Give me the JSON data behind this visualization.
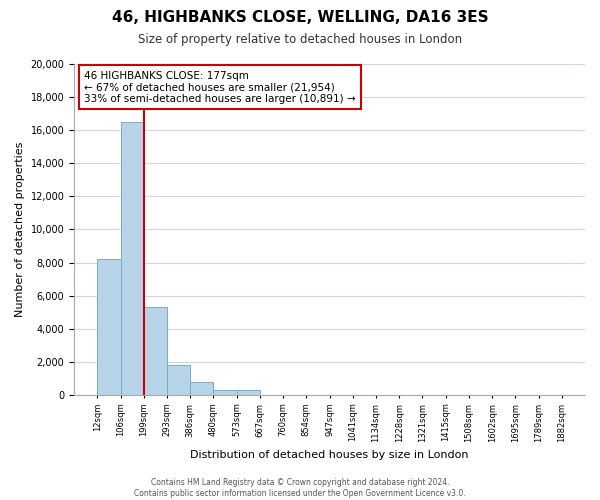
{
  "title": "46, HIGHBANKS CLOSE, WELLING, DA16 3ES",
  "subtitle": "Size of property relative to detached houses in London",
  "xlabel": "Distribution of detached houses by size in London",
  "ylabel": "Number of detached properties",
  "bar_values": [
    8200,
    16500,
    5300,
    1800,
    750,
    300,
    300,
    0,
    0,
    0,
    0,
    0,
    0,
    0,
    0,
    0,
    0,
    0,
    0,
    0
  ],
  "categories": [
    "12sqm",
    "106sqm",
    "199sqm",
    "293sqm",
    "386sqm",
    "480sqm",
    "573sqm",
    "667sqm",
    "760sqm",
    "854sqm",
    "947sqm",
    "1041sqm",
    "1134sqm",
    "1228sqm",
    "1321sqm",
    "1415sqm",
    "1508sqm",
    "1602sqm",
    "1695sqm",
    "1789sqm",
    "1882sqm"
  ],
  "bar_color": "#b8d4e8",
  "bar_edge_color": "#7aaec8",
  "vline_x": 2,
  "vline_color": "#cc0000",
  "annotation_title": "46 HIGHBANKS CLOSE: 177sqm",
  "annotation_line1": "← 67% of detached houses are smaller (21,954)",
  "annotation_line2": "33% of semi-detached houses are larger (10,891) →",
  "ylim": [
    0,
    20000
  ],
  "yticks": [
    0,
    2000,
    4000,
    6000,
    8000,
    10000,
    12000,
    14000,
    16000,
    18000,
    20000
  ],
  "footer1": "Contains HM Land Registry data © Crown copyright and database right 2024.",
  "footer2": "Contains public sector information licensed under the Open Government Licence v3.0.",
  "bg_color": "#ffffff",
  "grid_color": "#d0d8e8"
}
